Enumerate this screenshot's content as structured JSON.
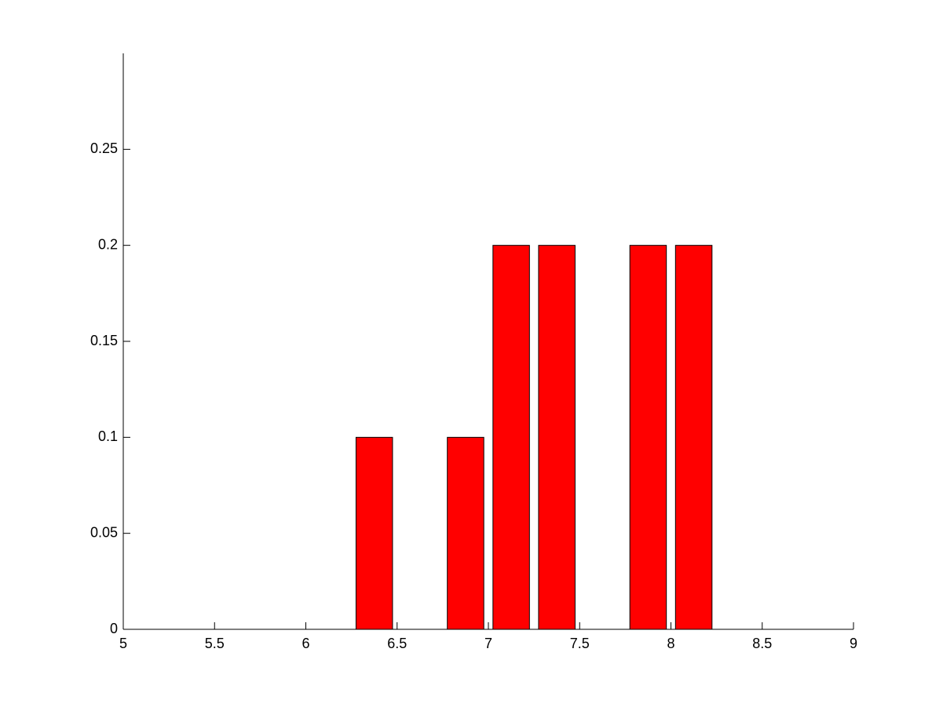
{
  "chart_data": {
    "type": "bar",
    "x": [
      6.375,
      6.875,
      7.125,
      7.375,
      7.875,
      8.125
    ],
    "values": [
      0.1,
      0.1,
      0.2,
      0.2,
      0.2,
      0.2
    ],
    "color": "#ff0000",
    "xlim": [
      5,
      9
    ],
    "xticks": [
      5,
      5.5,
      6,
      6.5,
      7,
      7.5,
      8,
      8.5,
      9
    ],
    "ylim": [
      0,
      0.3
    ],
    "yticks": [
      0,
      0.05,
      0.1,
      0.15,
      0.2,
      0.25
    ],
    "grid": false
  }
}
